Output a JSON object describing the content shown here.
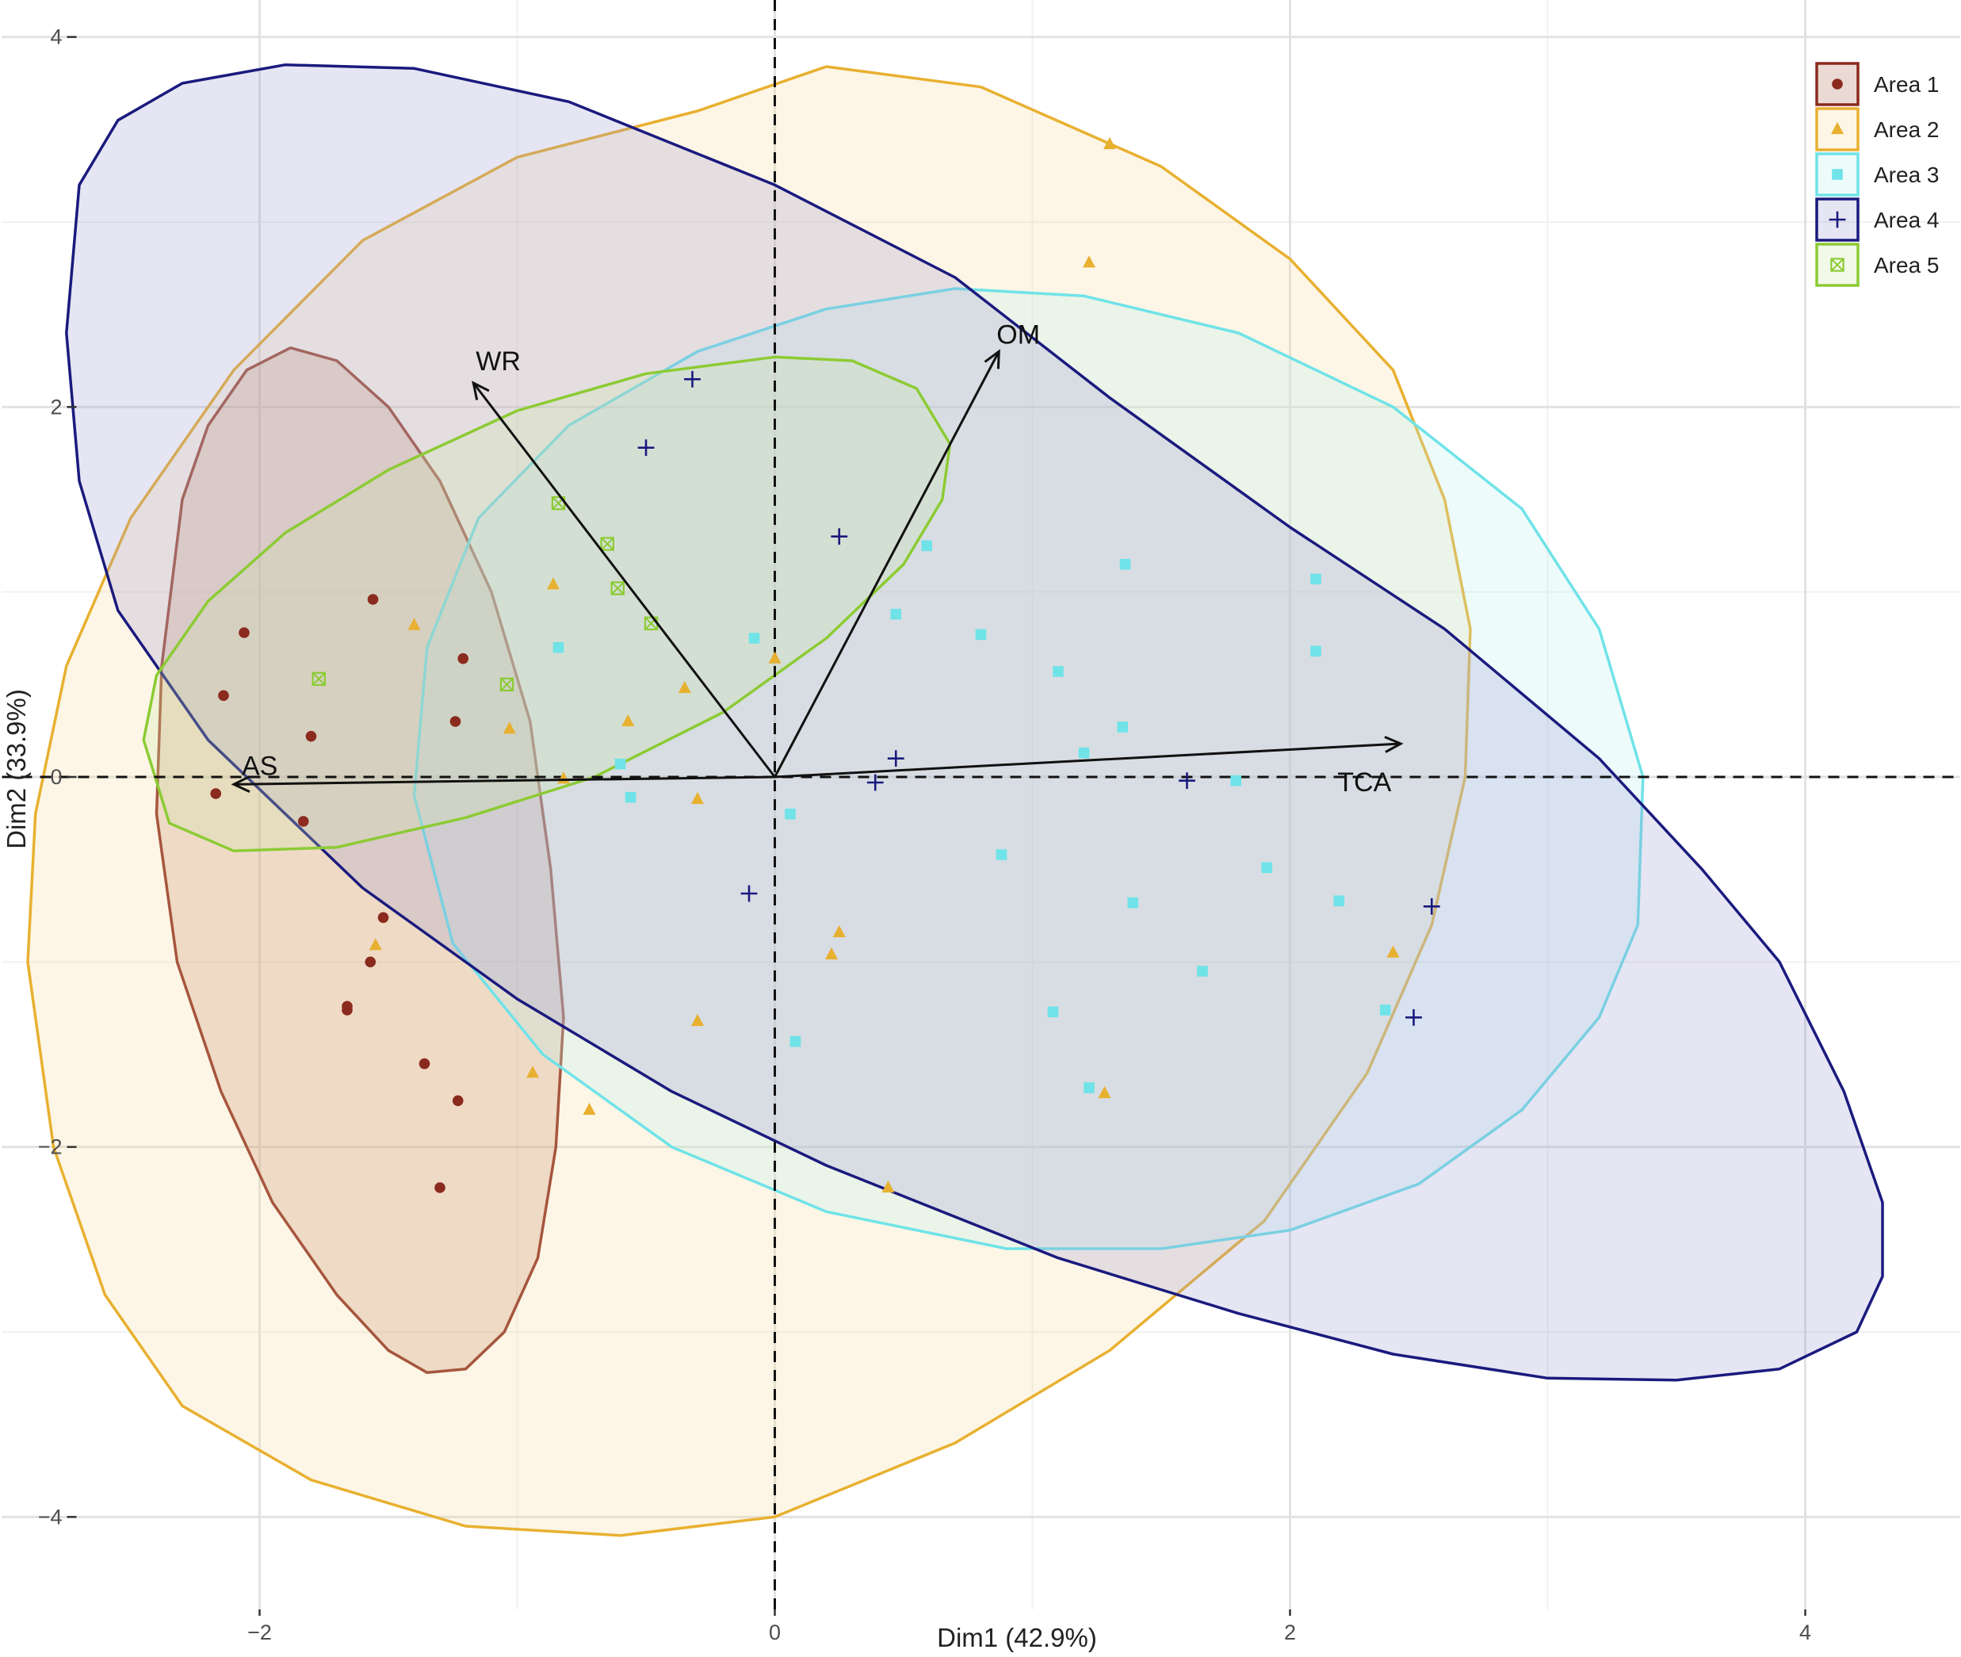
{
  "chart_data": {
    "type": "scatter",
    "subtype": "pca-biplot",
    "title": "",
    "xlabel": "Dim1 (42.9%)",
    "ylabel": "Dim2 (33.9%)",
    "xlim": [
      -3.0,
      4.6
    ],
    "ylim": [
      -4.5,
      4.2
    ],
    "xticks": [
      -2,
      0,
      2,
      4
    ],
    "yticks": [
      -4,
      -2,
      0,
      2,
      4
    ],
    "xtick_labels": [
      "−2",
      "0",
      "2",
      "4"
    ],
    "ytick_labels": [
      "−4",
      "−2",
      "0",
      "2",
      "4"
    ],
    "grid": true,
    "legend_position": "top-right",
    "reference_lines": {
      "x": 0,
      "y": 0,
      "style": "dashed"
    },
    "vectors": [
      {
        "label": "WR",
        "x": -1.17,
        "y": 2.13
      },
      {
        "label": "OM",
        "x": 0.87,
        "y": 2.3
      },
      {
        "label": "TCA",
        "x": 2.43,
        "y": 0.18
      },
      {
        "label": "AS",
        "x": -2.1,
        "y": -0.04
      }
    ],
    "series": [
      {
        "name": "Area 1",
        "color": "#8B2A1E",
        "fill": "#b06a50",
        "marker": "circle",
        "ellipse": [
          [
            -2.3,
            1.5
          ],
          [
            -2.2,
            1.9
          ],
          [
            -2.05,
            2.2
          ],
          [
            -1.88,
            2.32
          ],
          [
            -1.7,
            2.25
          ],
          [
            -1.5,
            2.0
          ],
          [
            -1.3,
            1.6
          ],
          [
            -1.1,
            1.0
          ],
          [
            -0.95,
            0.3
          ],
          [
            -0.87,
            -0.5
          ],
          [
            -0.82,
            -1.3
          ],
          [
            -0.85,
            -2.0
          ],
          [
            -0.92,
            -2.6
          ],
          [
            -1.05,
            -3.0
          ],
          [
            -1.2,
            -3.2
          ],
          [
            -1.35,
            -3.22
          ],
          [
            -1.5,
            -3.1
          ],
          [
            -1.7,
            -2.8
          ],
          [
            -1.95,
            -2.3
          ],
          [
            -2.15,
            -1.7
          ],
          [
            -2.32,
            -1.0
          ],
          [
            -2.4,
            -0.2
          ],
          [
            -2.38,
            0.6
          ]
        ],
        "points": [
          [
            -2.06,
            0.78
          ],
          [
            -1.56,
            0.96
          ],
          [
            -2.14,
            0.44
          ],
          [
            -1.21,
            0.64
          ],
          [
            -1.24,
            0.3
          ],
          [
            -1.8,
            0.22
          ],
          [
            -2.17,
            -0.09
          ],
          [
            -1.83,
            -0.24
          ],
          [
            -1.52,
            -0.76
          ],
          [
            -1.57,
            -1.0
          ],
          [
            -1.66,
            -1.24
          ],
          [
            -1.66,
            -1.26
          ],
          [
            -1.36,
            -1.55
          ],
          [
            -1.23,
            -1.75
          ],
          [
            -1.3,
            -2.22
          ]
        ]
      },
      {
        "name": "Area 2",
        "color": "#E8B030",
        "fill": "#f7dc9a",
        "marker": "triangle",
        "ellipse": [
          [
            -0.3,
            3.6
          ],
          [
            0.2,
            3.84
          ],
          [
            0.8,
            3.73
          ],
          [
            1.5,
            3.3
          ],
          [
            2.0,
            2.8
          ],
          [
            2.4,
            2.2
          ],
          [
            2.6,
            1.5
          ],
          [
            2.7,
            0.8
          ],
          [
            2.68,
            0.0
          ],
          [
            2.55,
            -0.8
          ],
          [
            2.3,
            -1.6
          ],
          [
            1.9,
            -2.4
          ],
          [
            1.3,
            -3.1
          ],
          [
            0.7,
            -3.6
          ],
          [
            0.0,
            -4.0
          ],
          [
            -0.6,
            -4.1
          ],
          [
            -1.2,
            -4.05
          ],
          [
            -1.8,
            -3.8
          ],
          [
            -2.3,
            -3.4
          ],
          [
            -2.6,
            -2.8
          ],
          [
            -2.8,
            -2.0
          ],
          [
            -2.9,
            -1.0
          ],
          [
            -2.87,
            -0.2
          ],
          [
            -2.75,
            0.6
          ],
          [
            -2.5,
            1.4
          ],
          [
            -2.1,
            2.2
          ],
          [
            -1.6,
            2.9
          ],
          [
            -1.0,
            3.35
          ]
        ],
        "points": [
          [
            1.3,
            3.42
          ],
          [
            1.22,
            2.78
          ],
          [
            -1.4,
            0.82
          ],
          [
            -0.86,
            1.04
          ],
          [
            0.0,
            0.64
          ],
          [
            -0.35,
            0.48
          ],
          [
            -0.57,
            0.3
          ],
          [
            -1.03,
            0.26
          ],
          [
            -0.82,
            -0.01
          ],
          [
            -0.3,
            -0.12
          ],
          [
            0.25,
            -0.84
          ],
          [
            0.22,
            -0.96
          ],
          [
            -1.55,
            -0.91
          ],
          [
            -0.3,
            -1.32
          ],
          [
            -0.94,
            -1.6
          ],
          [
            -0.72,
            -1.8
          ],
          [
            1.28,
            -1.71
          ],
          [
            0.44,
            -2.22
          ],
          [
            2.4,
            -0.95
          ]
        ]
      },
      {
        "name": "Area 3",
        "color": "#6FE3E8",
        "fill": "#b9eef0",
        "marker": "square",
        "ellipse": [
          [
            -0.8,
            1.9
          ],
          [
            -0.3,
            2.3
          ],
          [
            0.2,
            2.53
          ],
          [
            0.7,
            2.64
          ],
          [
            1.2,
            2.6
          ],
          [
            1.8,
            2.4
          ],
          [
            2.4,
            2.0
          ],
          [
            2.9,
            1.45
          ],
          [
            3.2,
            0.8
          ],
          [
            3.37,
            0.0
          ],
          [
            3.35,
            -0.8
          ],
          [
            3.2,
            -1.3
          ],
          [
            2.9,
            -1.8
          ],
          [
            2.5,
            -2.2
          ],
          [
            2.0,
            -2.45
          ],
          [
            1.5,
            -2.55
          ],
          [
            0.9,
            -2.55
          ],
          [
            0.2,
            -2.35
          ],
          [
            -0.4,
            -2.0
          ],
          [
            -0.9,
            -1.5
          ],
          [
            -1.25,
            -0.9
          ],
          [
            -1.4,
            -0.1
          ],
          [
            -1.35,
            0.7
          ],
          [
            -1.15,
            1.4
          ]
        ],
        "points": [
          [
            0.59,
            1.25
          ],
          [
            -0.08,
            0.75
          ],
          [
            -0.84,
            0.7
          ],
          [
            0.47,
            0.88
          ],
          [
            0.8,
            0.77
          ],
          [
            1.1,
            0.57
          ],
          [
            1.36,
            1.15
          ],
          [
            2.1,
            1.07
          ],
          [
            2.1,
            0.68
          ],
          [
            -0.6,
            0.07
          ],
          [
            1.35,
            0.27
          ],
          [
            1.2,
            0.13
          ],
          [
            -0.56,
            -0.11
          ],
          [
            0.06,
            -0.2
          ],
          [
            1.79,
            -0.02
          ],
          [
            0.88,
            -0.42
          ],
          [
            1.91,
            -0.49
          ],
          [
            1.39,
            -0.68
          ],
          [
            2.19,
            -0.67
          ],
          [
            1.66,
            -1.05
          ],
          [
            1.08,
            -1.27
          ],
          [
            2.37,
            -1.26
          ],
          [
            0.08,
            -1.43
          ],
          [
            1.22,
            -1.68
          ]
        ]
      },
      {
        "name": "Area 4",
        "color": "#1A1A7E",
        "fill": "#9a98cf",
        "marker": "plus",
        "ellipse": [
          [
            -2.7,
            3.2
          ],
          [
            -2.55,
            3.55
          ],
          [
            -2.3,
            3.75
          ],
          [
            -1.9,
            3.85
          ],
          [
            -1.4,
            3.83
          ],
          [
            -0.8,
            3.65
          ],
          [
            0.0,
            3.2
          ],
          [
            0.7,
            2.7
          ],
          [
            1.3,
            2.05
          ],
          [
            2.0,
            1.35
          ],
          [
            2.6,
            0.8
          ],
          [
            3.2,
            0.1
          ],
          [
            3.6,
            -0.5
          ],
          [
            3.9,
            -1.0
          ],
          [
            4.15,
            -1.7
          ],
          [
            4.3,
            -2.3
          ],
          [
            4.3,
            -2.7
          ],
          [
            4.2,
            -3.0
          ],
          [
            3.9,
            -3.2
          ],
          [
            3.5,
            -3.26
          ],
          [
            3.0,
            -3.25
          ],
          [
            2.4,
            -3.12
          ],
          [
            1.8,
            -2.9
          ],
          [
            1.1,
            -2.6
          ],
          [
            0.2,
            -2.1
          ],
          [
            -0.4,
            -1.7
          ],
          [
            -1.0,
            -1.2
          ],
          [
            -1.6,
            -0.6
          ],
          [
            -2.2,
            0.2
          ],
          [
            -2.55,
            0.9
          ],
          [
            -2.7,
            1.6
          ],
          [
            -2.75,
            2.4
          ]
        ],
        "points": [
          [
            -0.32,
            2.15
          ],
          [
            -0.5,
            1.78
          ],
          [
            0.25,
            1.3
          ],
          [
            0.47,
            0.1
          ],
          [
            0.39,
            -0.03
          ],
          [
            1.6,
            -0.02
          ],
          [
            2.55,
            -0.7
          ],
          [
            -0.1,
            -0.63
          ],
          [
            2.48,
            -1.3
          ]
        ]
      },
      {
        "name": "Area 5",
        "color": "#8CCB34",
        "fill": "#cce7a6",
        "marker": "boxed-x",
        "ellipse": [
          [
            -2.45,
            0.2
          ],
          [
            -2.4,
            0.55
          ],
          [
            -2.2,
            0.95
          ],
          [
            -1.9,
            1.32
          ],
          [
            -1.5,
            1.66
          ],
          [
            -1.0,
            1.98
          ],
          [
            -0.5,
            2.18
          ],
          [
            0.0,
            2.27
          ],
          [
            0.3,
            2.25
          ],
          [
            0.55,
            2.1
          ],
          [
            0.68,
            1.8
          ],
          [
            0.65,
            1.5
          ],
          [
            0.5,
            1.15
          ],
          [
            0.2,
            0.75
          ],
          [
            -0.2,
            0.35
          ],
          [
            -0.7,
            0.0
          ],
          [
            -1.2,
            -0.22
          ],
          [
            -1.7,
            -0.38
          ],
          [
            -2.1,
            -0.4
          ],
          [
            -2.35,
            -0.25
          ]
        ],
        "points": [
          [
            -0.84,
            1.48
          ],
          [
            -0.65,
            1.26
          ],
          [
            -0.61,
            1.02
          ],
          [
            -0.48,
            0.83
          ],
          [
            -1.04,
            0.5
          ],
          [
            -1.77,
            0.53
          ]
        ]
      }
    ]
  }
}
